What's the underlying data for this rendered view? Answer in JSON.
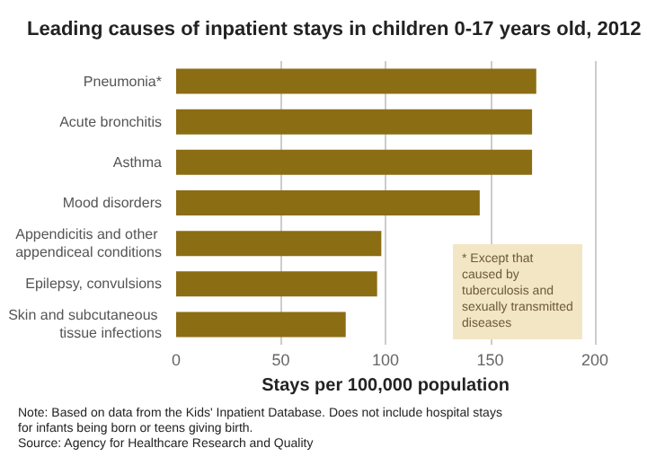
{
  "chart_data": {
    "type": "bar",
    "orientation": "horizontal",
    "title": "Leading causes of inpatient stays in children 0-17 years old, 2012",
    "categories": [
      "Pneumonia*",
      "Acute bronchitis",
      "Asthma",
      "Mood disorders",
      "Appendicitis and other appendiceal conditions",
      "Epilepsy, convulsions",
      "Skin and subcutaneous tissue infections"
    ],
    "values": [
      172,
      170,
      170,
      145,
      98,
      96,
      81
    ],
    "color": "#8b6d14",
    "xlim": [
      0,
      200
    ],
    "xticks": [
      0,
      50,
      100,
      150,
      200
    ],
    "xlabel": "Stays per 100,000 population",
    "grid": "x",
    "annotations": [
      "* Except that caused by tuberculosis and sexually transmitted diseases",
      "Note: Based on data from the Kids' Inpatient Database. Does not include hospital stays for infants being born or teens giving birth.",
      "Source: Agency for Healthcare Research and Quality"
    ]
  }
}
